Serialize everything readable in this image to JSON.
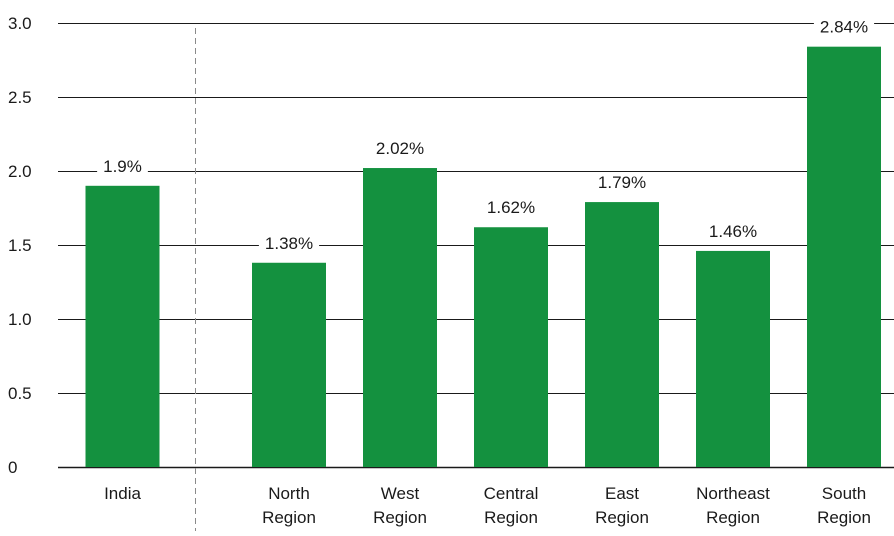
{
  "chart_data": {
    "type": "bar",
    "title": "",
    "xlabel": "",
    "ylabel": "",
    "ylim": [
      0,
      3.0
    ],
    "yticks": [
      {
        "value": 0,
        "label": "0"
      },
      {
        "value": 0.5,
        "label": "0.5"
      },
      {
        "value": 1.0,
        "label": "1.0"
      },
      {
        "value": 1.5,
        "label": "1.5"
      },
      {
        "value": 2.0,
        "label": "2.0"
      },
      {
        "value": 2.5,
        "label": "2.5"
      },
      {
        "value": 3.0,
        "label": "3.0"
      }
    ],
    "grid": true,
    "legend": "none",
    "categories": [
      [
        "India"
      ],
      [
        "North",
        "Region"
      ],
      [
        "West",
        "Region"
      ],
      [
        "Central",
        "Region"
      ],
      [
        "East",
        "Region"
      ],
      [
        "Northeast",
        "Region"
      ],
      [
        "South",
        "Region"
      ]
    ],
    "values": [
      1.9,
      1.38,
      2.02,
      1.62,
      1.79,
      1.46,
      2.84
    ],
    "data_labels": [
      "1.9%",
      "1.38%",
      "2.02%",
      "1.62%",
      "1.79%",
      "1.46%",
      "2.84%"
    ],
    "bar_color": "#14913f",
    "grid_color": "#1a1a1a",
    "separator_after_index": 0
  }
}
